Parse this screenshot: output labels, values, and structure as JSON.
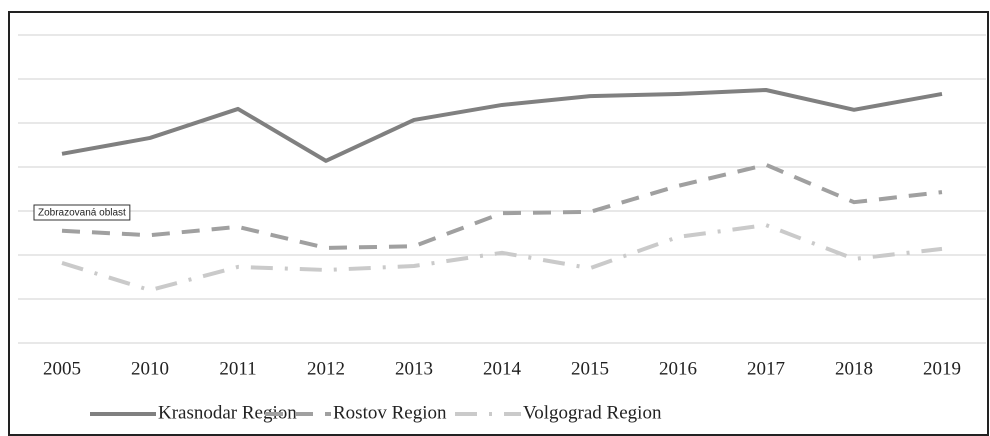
{
  "chart_data": {
    "type": "line",
    "categories": [
      "2005",
      "2010",
      "2011",
      "2012",
      "2013",
      "2014",
      "2015",
      "2016",
      "2017",
      "2018",
      "2019"
    ],
    "series": [
      {
        "name": "Krasnodar Region",
        "color": "#808080",
        "dash": "none",
        "values": [
          4.3,
          4.66,
          5.32,
          4.14,
          5.07,
          5.41,
          5.61,
          5.66,
          5.75,
          5.3,
          5.66
        ]
      },
      {
        "name": "Rostov Region",
        "color": "#a0a0a0",
        "dash": "18 12",
        "values": [
          2.55,
          2.45,
          2.64,
          2.16,
          2.2,
          2.95,
          2.98,
          3.57,
          4.05,
          3.2,
          3.43
        ]
      },
      {
        "name": "Volgograd Region",
        "color": "#cacaca",
        "dash": "22 12 3 12",
        "values": [
          1.82,
          1.2,
          1.73,
          1.66,
          1.75,
          2.05,
          1.7,
          2.41,
          2.68,
          1.91,
          2.14
        ]
      }
    ],
    "annotation": "Zobrazovaná oblast",
    "ylim": [
      0,
      7
    ],
    "yticks": [
      0,
      1,
      2,
      3,
      4,
      5,
      6,
      7
    ],
    "grid": true,
    "legend": "bottom"
  }
}
